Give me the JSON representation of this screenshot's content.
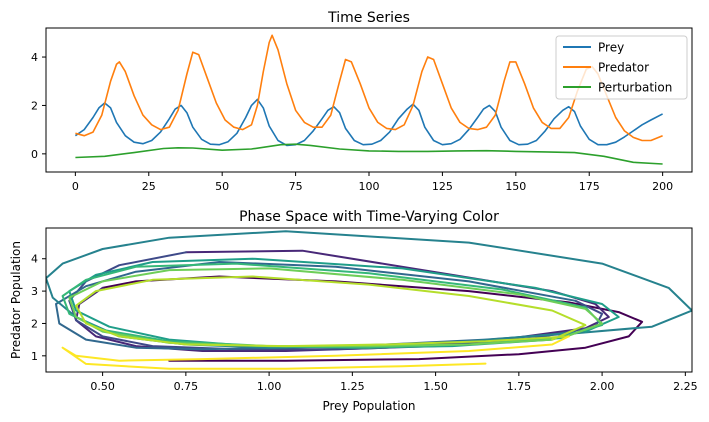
{
  "chart_data": [
    {
      "type": "line",
      "title": "Time Series",
      "xlabel": "",
      "ylabel": "",
      "xlim": [
        -10,
        210
      ],
      "ylim": [
        -0.75,
        5.2
      ],
      "xticks": [
        0,
        25,
        50,
        75,
        100,
        125,
        150,
        175,
        200
      ],
      "yticks": [
        0,
        2,
        4
      ],
      "grid": false,
      "legend_position": "upper right",
      "series": [
        {
          "name": "Prey",
          "color": "#1f77b4",
          "x": [
            0,
            3,
            6,
            8,
            10,
            12,
            14,
            17,
            20,
            23,
            26,
            29,
            32,
            34,
            36,
            38,
            40,
            43,
            46,
            49,
            52,
            55,
            58,
            60,
            62,
            64,
            66,
            69,
            72,
            75,
            78,
            81,
            84,
            86,
            88,
            90,
            92,
            95,
            98,
            101,
            104,
            107,
            110,
            113,
            115,
            117,
            119,
            122,
            125,
            128,
            131,
            134,
            137,
            139,
            141,
            143,
            145,
            148,
            151,
            154,
            157,
            160,
            163,
            166,
            168,
            170,
            172,
            175,
            178,
            181,
            184,
            187,
            190,
            193,
            196,
            200
          ],
          "values": [
            0.75,
            1.0,
            1.5,
            1.9,
            2.1,
            1.9,
            1.3,
            0.75,
            0.48,
            0.42,
            0.55,
            0.9,
            1.45,
            1.85,
            2.0,
            1.7,
            1.1,
            0.6,
            0.4,
            0.38,
            0.5,
            0.85,
            1.5,
            2.0,
            2.25,
            1.9,
            1.15,
            0.55,
            0.35,
            0.38,
            0.55,
            0.95,
            1.45,
            1.8,
            1.95,
            1.7,
            1.05,
            0.55,
            0.38,
            0.4,
            0.55,
            0.9,
            1.45,
            1.85,
            2.05,
            1.8,
            1.1,
            0.55,
            0.38,
            0.42,
            0.6,
            1.0,
            1.5,
            1.85,
            2.0,
            1.75,
            1.1,
            0.55,
            0.38,
            0.4,
            0.55,
            0.95,
            1.45,
            1.8,
            1.95,
            1.75,
            1.15,
            0.6,
            0.38,
            0.38,
            0.48,
            0.7,
            0.95,
            1.2,
            1.4,
            1.65
          ]
        },
        {
          "name": "Predator",
          "color": "#ff7f0e",
          "x": [
            0,
            3,
            6,
            9,
            12,
            14,
            15,
            17,
            20,
            23,
            26,
            29,
            32,
            35,
            38,
            40,
            42,
            45,
            48,
            51,
            54,
            57,
            60,
            62,
            64,
            66,
            67,
            69,
            72,
            75,
            78,
            81,
            84,
            87,
            90,
            92,
            94,
            97,
            100,
            103,
            106,
            109,
            112,
            115,
            118,
            120,
            122,
            125,
            128,
            131,
            134,
            137,
            140,
            143,
            146,
            148,
            150,
            153,
            156,
            159,
            162,
            165,
            168,
            171,
            174,
            176,
            178,
            181,
            184,
            187,
            190,
            193,
            196,
            200
          ],
          "values": [
            0.85,
            0.75,
            0.9,
            1.6,
            3.0,
            3.7,
            3.8,
            3.4,
            2.4,
            1.6,
            1.2,
            1.0,
            1.1,
            1.8,
            3.3,
            4.2,
            4.1,
            3.1,
            2.1,
            1.4,
            1.1,
            1.0,
            1.2,
            2.0,
            3.4,
            4.6,
            4.9,
            4.3,
            2.9,
            1.8,
            1.3,
            1.1,
            1.1,
            1.6,
            3.0,
            3.9,
            3.8,
            2.9,
            1.9,
            1.3,
            1.05,
            1.0,
            1.2,
            2.0,
            3.4,
            4.0,
            3.9,
            2.9,
            1.9,
            1.3,
            1.05,
            1.0,
            1.1,
            1.6,
            3.0,
            3.8,
            3.8,
            2.9,
            1.9,
            1.3,
            1.05,
            1.05,
            1.5,
            2.6,
            3.5,
            3.6,
            3.3,
            2.4,
            1.5,
            0.95,
            0.68,
            0.55,
            0.55,
            0.75
          ]
        },
        {
          "name": "Perturbation",
          "color": "#2ca02c",
          "x": [
            0,
            10,
            20,
            30,
            35,
            40,
            50,
            60,
            70,
            75,
            80,
            90,
            100,
            110,
            120,
            130,
            140,
            150,
            160,
            170,
            180,
            190,
            200
          ],
          "values": [
            -0.15,
            -0.1,
            0.05,
            0.22,
            0.25,
            0.24,
            0.15,
            0.2,
            0.38,
            0.4,
            0.35,
            0.2,
            0.12,
            0.1,
            0.1,
            0.12,
            0.13,
            0.1,
            0.08,
            0.05,
            -0.1,
            -0.35,
            -0.42
          ]
        }
      ]
    },
    {
      "type": "line",
      "title": "Phase Space with Time-Varying Color",
      "xlabel": "Prey Population",
      "ylabel": "Predator Population",
      "xlim": [
        0.33,
        2.27
      ],
      "ylim": [
        0.5,
        4.95
      ],
      "xticks": [
        "0.50",
        "0.75",
        "1.00",
        "1.25",
        "1.50",
        "1.75",
        "2.00",
        "2.25"
      ],
      "yticks": [
        1,
        2,
        3,
        4
      ],
      "grid": false,
      "colormap": "viridis (color encodes time)",
      "series": [
        {
          "color": "#440154",
          "x": [
            0.7,
            1.05,
            1.45,
            1.75,
            1.95,
            2.08,
            2.12,
            2.05,
            1.9,
            1.6,
            1.2,
            0.85,
            0.6,
            0.5
          ],
          "y": [
            0.85,
            0.85,
            0.9,
            1.05,
            1.25,
            1.6,
            2.05,
            2.35,
            2.65,
            3.0,
            3.3,
            3.45,
            3.3,
            3.1
          ]
        },
        {
          "color": "#482878",
          "x": [
            0.5,
            0.43,
            0.42,
            0.48,
            0.6,
            0.8,
            1.05,
            1.35,
            1.7,
            1.95,
            2.02,
            1.98,
            1.85,
            1.55,
            1.1,
            0.75
          ],
          "y": [
            3.1,
            2.6,
            2.1,
            1.6,
            1.3,
            1.15,
            1.15,
            1.25,
            1.5,
            1.85,
            2.2,
            2.6,
            3.0,
            3.5,
            4.25,
            4.2
          ]
        },
        {
          "color": "#3e4a89",
          "x": [
            0.75,
            0.55,
            0.45,
            0.4,
            0.42,
            0.5,
            0.65,
            0.9,
            1.2,
            1.5,
            1.8,
            1.98,
            2.0,
            1.92
          ],
          "y": [
            4.2,
            3.8,
            3.3,
            2.7,
            2.1,
            1.6,
            1.3,
            1.2,
            1.2,
            1.3,
            1.55,
            1.9,
            2.3,
            2.7
          ]
        },
        {
          "color": "#31688e",
          "x": [
            1.92,
            1.6,
            1.2,
            0.85,
            0.6,
            0.45,
            0.36,
            0.37,
            0.45,
            0.6,
            0.8,
            1.05,
            1.35,
            1.65,
            1.92
          ],
          "y": [
            2.7,
            3.3,
            3.75,
            3.9,
            3.6,
            3.15,
            2.6,
            2.0,
            1.5,
            1.25,
            1.2,
            1.25,
            1.35,
            1.5,
            1.7
          ]
        },
        {
          "color": "#26828e",
          "x": [
            1.92,
            2.15,
            2.27,
            2.2,
            2.0,
            1.6,
            1.05,
            0.7,
            0.5,
            0.38,
            0.33,
            0.35,
            0.42,
            0.55,
            0.75,
            1.0,
            1.3,
            1.6,
            1.95
          ],
          "y": [
            1.7,
            1.9,
            2.4,
            3.1,
            3.85,
            4.5,
            4.85,
            4.65,
            4.3,
            3.85,
            3.4,
            2.8,
            2.2,
            1.6,
            1.35,
            1.25,
            1.3,
            1.45,
            1.75
          ]
        },
        {
          "color": "#1f9e89",
          "x": [
            1.95,
            2.05,
            2.0,
            1.8,
            1.4,
            0.95,
            0.65,
            0.48,
            0.4,
            0.42,
            0.52,
            0.7,
            0.95,
            1.25,
            1.55,
            1.85
          ],
          "y": [
            1.75,
            2.2,
            2.6,
            3.1,
            3.7,
            4.0,
            3.9,
            3.5,
            3.0,
            2.4,
            1.9,
            1.5,
            1.3,
            1.25,
            1.3,
            1.5
          ]
        },
        {
          "color": "#35b779",
          "x": [
            1.85,
            2.0,
            1.95,
            1.7,
            1.3,
            0.9,
            0.6,
            0.45,
            0.38,
            0.4,
            0.5,
            0.7,
            1.0,
            1.3,
            1.6,
            1.88
          ],
          "y": [
            1.5,
            1.95,
            2.5,
            3.05,
            3.55,
            3.85,
            3.75,
            3.35,
            2.85,
            2.3,
            1.8,
            1.45,
            1.3,
            1.25,
            1.35,
            1.55
          ]
        },
        {
          "color": "#6ece58",
          "x": [
            1.88,
            2.0,
            1.95,
            1.75,
            1.4,
            1.0,
            0.7,
            0.5,
            0.4,
            0.42,
            0.5,
            0.7,
            1.0,
            1.3,
            1.6,
            1.85
          ],
          "y": [
            1.55,
            2.0,
            2.45,
            2.9,
            3.35,
            3.7,
            3.65,
            3.3,
            2.8,
            2.2,
            1.75,
            1.4,
            1.3,
            1.3,
            1.35,
            1.5
          ]
        },
        {
          "color": "#b5de2b",
          "x": [
            1.85,
            1.95,
            1.85,
            1.6,
            1.3,
            0.95,
            0.65,
            0.48,
            0.42,
            0.45,
            0.55,
            0.75,
            1.05,
            1.35,
            1.65,
            1.9
          ],
          "y": [
            1.5,
            1.95,
            2.4,
            2.85,
            3.2,
            3.45,
            3.35,
            3.0,
            2.55,
            2.0,
            1.6,
            1.35,
            1.3,
            1.35,
            1.45,
            1.6
          ]
        },
        {
          "color": "#fde725",
          "x": [
            1.9,
            1.85,
            1.6,
            1.2,
            0.8,
            0.55,
            0.42,
            0.38,
            0.45,
            0.7,
            1.05,
            1.4,
            1.65
          ],
          "y": [
            1.6,
            1.35,
            1.15,
            1.0,
            0.9,
            0.85,
            1.0,
            1.25,
            0.75,
            0.6,
            0.6,
            0.68,
            0.76
          ]
        }
      ]
    }
  ]
}
